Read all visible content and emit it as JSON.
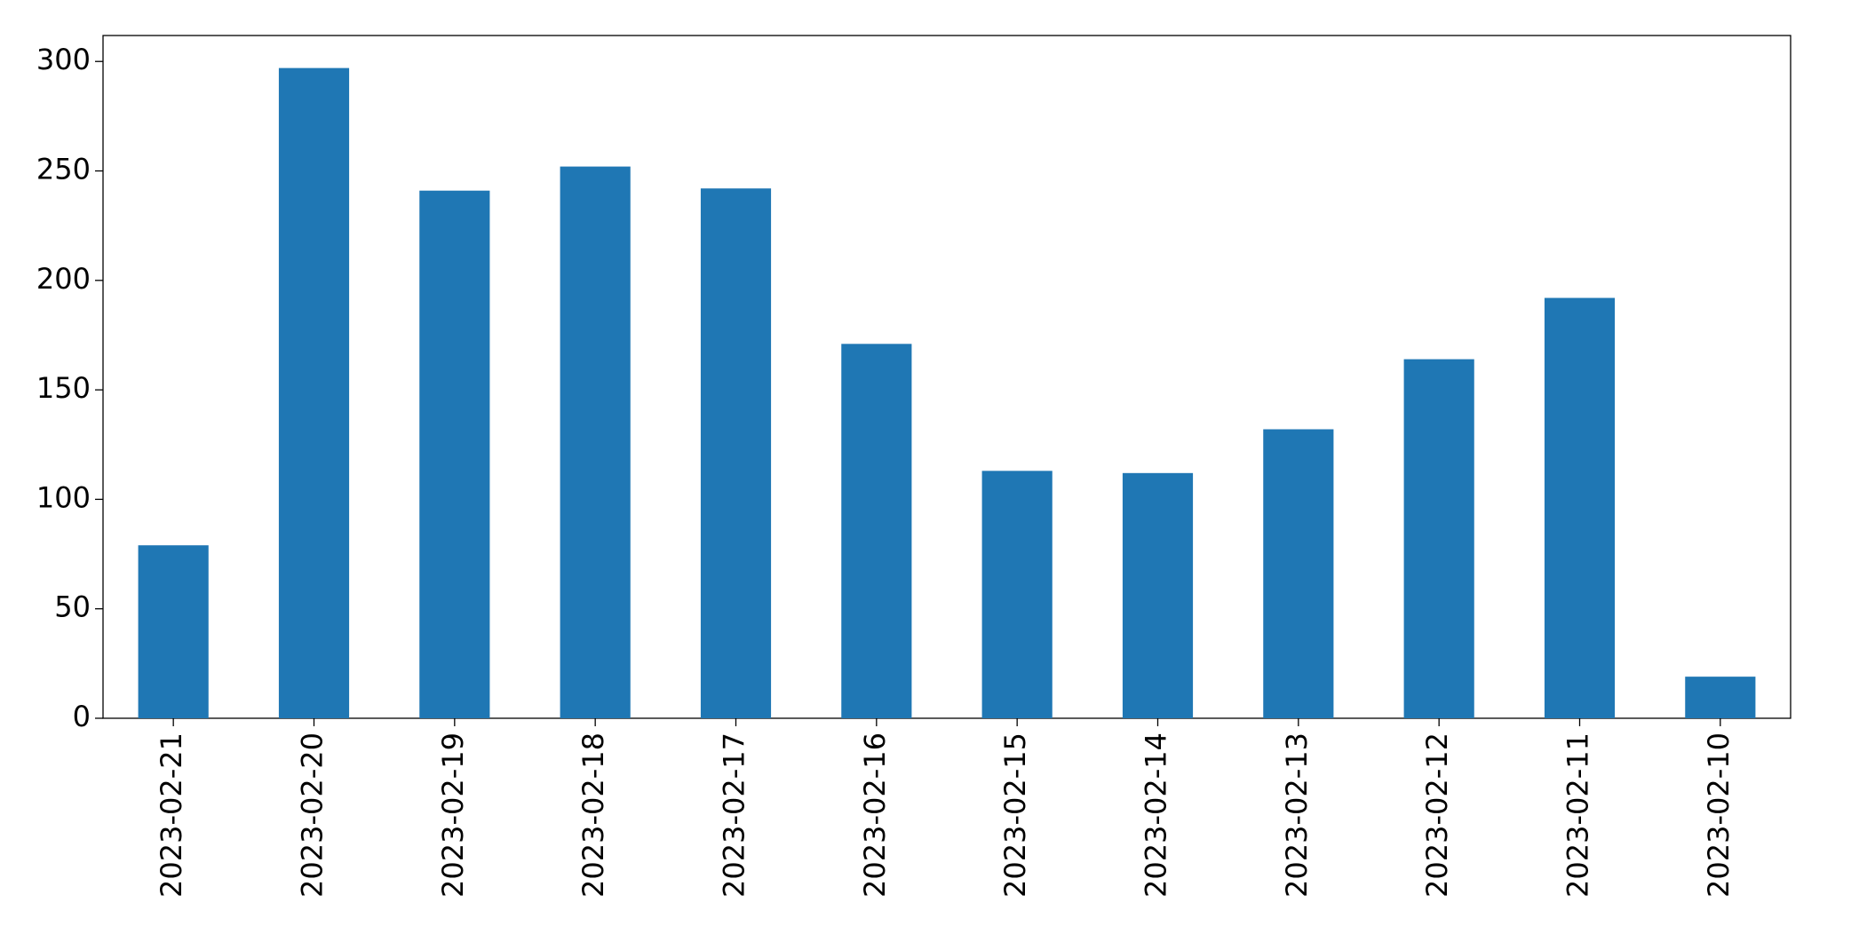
{
  "chart_data": {
    "type": "bar",
    "categories": [
      "2023-02-21",
      "2023-02-20",
      "2023-02-19",
      "2023-02-18",
      "2023-02-17",
      "2023-02-16",
      "2023-02-15",
      "2023-02-14",
      "2023-02-13",
      "2023-02-12",
      "2023-02-11",
      "2023-02-10"
    ],
    "values": [
      79,
      297,
      241,
      252,
      242,
      171,
      113,
      112,
      132,
      164,
      192,
      19
    ],
    "color": "#1f77b4",
    "ylim": [
      0,
      311.85
    ],
    "yticks": [
      0,
      50,
      100,
      150,
      200,
      250,
      300
    ],
    "grid": false
  }
}
